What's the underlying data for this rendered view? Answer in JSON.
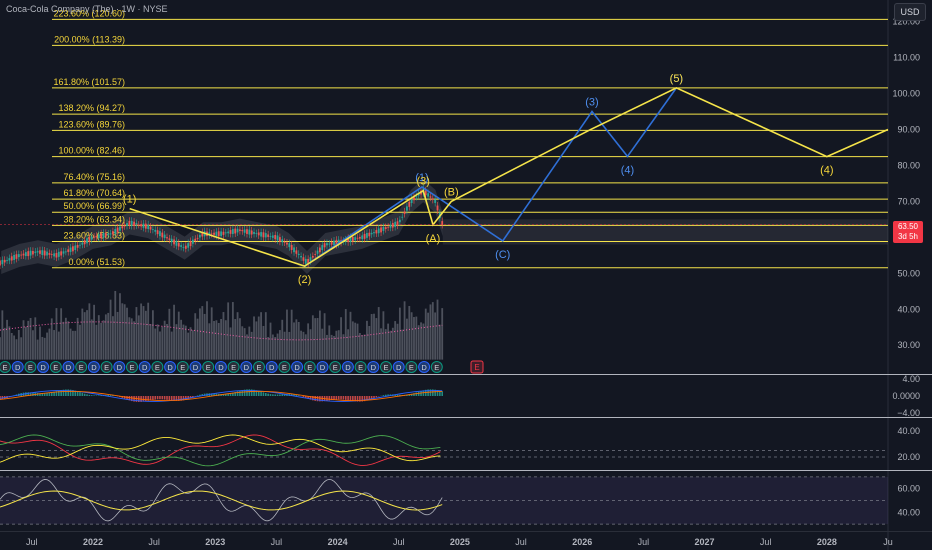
{
  "header": {
    "symbol_title": "Coca-Cola Company (The) · 1W · NYSE",
    "currency_button": "USD"
  },
  "last_price": {
    "value": "63.50",
    "countdown": "3d 5h"
  },
  "colors": {
    "background": "#131722",
    "fib_line": "#f5e44a",
    "fib_label": "#f5d63a",
    "wave_yellow": "#f5e44a",
    "wave_blue": "#2f6fd6",
    "wave_blue_label": "#4f8ff0",
    "price_up": "#26a69a",
    "price_down": "#ef5350",
    "badge": "#f23645"
  },
  "chart_data": [
    {
      "type": "line",
      "title": "",
      "xlabel": "",
      "ylabel": "",
      "ylim": [
        22,
        126
      ],
      "y_ticks": [
        {
          "v": 120,
          "label": "120.00"
        },
        {
          "v": 110,
          "label": "110.00"
        },
        {
          "v": 100,
          "label": "100.00"
        },
        {
          "v": 90,
          "label": "90.00"
        },
        {
          "v": 80,
          "label": "80.00"
        },
        {
          "v": 70,
          "label": "70.00"
        },
        {
          "v": 50,
          "label": "50.00"
        },
        {
          "v": 40,
          "label": "40.00"
        },
        {
          "v": 30,
          "label": "30.00"
        }
      ],
      "x_ticks": [
        "Jul",
        "2022",
        "Jul",
        "2023",
        "Jul",
        "2024",
        "Jul",
        "2025",
        "Jul",
        "2026",
        "Jul",
        "2027",
        "Jul",
        "2028",
        "Ju"
      ],
      "x_tick_t": [
        2021.5,
        2022.0,
        2022.5,
        2023.0,
        2023.5,
        2024.0,
        2024.5,
        2025.0,
        2025.5,
        2026.0,
        2026.5,
        2027.0,
        2027.5,
        2028.0,
        2028.5
      ],
      "xlim": [
        2021.24,
        2028.5
      ],
      "fib_levels": [
        {
          "label": "223.60% (120.60)",
          "value": 120.6
        },
        {
          "label": "200.00% (113.39)",
          "value": 113.39
        },
        {
          "label": "161.80% (101.57)",
          "value": 101.57
        },
        {
          "label": "138.20% (94.27)",
          "value": 94.27
        },
        {
          "label": "123.60% (89.76)",
          "value": 89.76
        },
        {
          "label": "100.00% (82.46)",
          "value": 82.46
        },
        {
          "label": "76.40% (75.16)",
          "value": 75.16
        },
        {
          "label": "61.80% (70.64)",
          "value": 70.64
        },
        {
          "label": "50.00% (66.99)",
          "value": 66.99
        },
        {
          "label": "38.20% (63.34)",
          "value": 63.34
        },
        {
          "label": "23.60% (58.83)",
          "value": 58.83
        },
        {
          "label": "0.00% (51.53)",
          "value": 51.53
        }
      ],
      "price_series": {
        "name": "KO",
        "x": [
          2021.25,
          2021.4,
          2021.55,
          2021.7,
          2021.85,
          2022.0,
          2022.15,
          2022.3,
          2022.45,
          2022.6,
          2022.75,
          2022.9,
          2023.05,
          2023.2,
          2023.35,
          2023.5,
          2023.6,
          2023.75,
          2023.9,
          2024.05,
          2024.2,
          2024.35,
          2024.5,
          2024.6,
          2024.7,
          2024.8,
          2024.86
        ],
        "y": [
          53,
          55,
          56,
          55,
          57,
          60,
          61,
          64,
          63,
          60,
          57,
          61,
          61,
          62,
          61,
          60,
          58,
          53,
          58,
          59,
          60,
          62,
          64,
          70,
          73,
          70,
          63.5
        ]
      },
      "volume_series": {
        "x": [
          2021.25,
          2021.5,
          2021.75,
          2022.0,
          2022.25,
          2022.5,
          2022.75,
          2023.0,
          2023.25,
          2023.5,
          2023.75,
          2024.0,
          2024.25,
          2024.5,
          2024.75,
          2024.86
        ],
        "y": [
          32,
          31,
          33,
          35,
          38,
          34,
          33,
          36,
          33,
          32,
          33,
          32,
          33,
          34,
          36,
          35
        ]
      },
      "waves_yellow": [
        {
          "label": "(1)",
          "x": 2022.3,
          "y": 68
        },
        {
          "label": "(2)",
          "x": 2023.73,
          "y": 52
        },
        {
          "label": "(3)",
          "x": 2024.7,
          "y": 73
        },
        {
          "label": "(A)",
          "x": 2024.78,
          "y": 63.5
        },
        {
          "label": "(B)",
          "x": 2024.93,
          "y": 70
        },
        {
          "label": "",
          "x": 2026.07,
          "y": 90
        },
        {
          "label": "(5)",
          "x": 2026.77,
          "y": 101.57
        },
        {
          "label": "(4)",
          "x": 2028.0,
          "y": 82.46
        },
        {
          "label": "",
          "x": 2028.5,
          "y": 90
        }
      ],
      "waves_blue": [
        {
          "label": "",
          "x": 2023.73,
          "y": 52
        },
        {
          "label": "(1)",
          "x": 2024.69,
          "y": 74
        },
        {
          "label": "(C)",
          "x": 2025.35,
          "y": 59
        },
        {
          "label": "(3)",
          "x": 2026.08,
          "y": 95
        },
        {
          "label": "(4)",
          "x": 2026.37,
          "y": 82.5
        },
        {
          "label": "(5)",
          "x": 2026.77,
          "y": 101.57
        }
      ],
      "earnings_markers": [
        "E",
        "D",
        "E",
        "D",
        "E",
        "D",
        "E",
        "D",
        "E",
        "D",
        "E",
        "D",
        "E",
        "D",
        "E",
        "D",
        "E",
        "D",
        "E",
        "D",
        "E",
        "D",
        "E",
        "D",
        "E",
        "D",
        "E",
        "D",
        "E",
        "D",
        "E",
        "D",
        "E",
        "D",
        "E"
      ],
      "earnings_future": "E"
    },
    {
      "type": "line",
      "title": "",
      "ylim": [
        -5,
        5
      ],
      "y_ticks": [
        {
          "v": 4,
          "label": "4.00"
        },
        {
          "v": 0,
          "label": "0.0000"
        },
        {
          "v": -4,
          "label": "−4.00"
        }
      ]
    },
    {
      "type": "line",
      "title": "",
      "ylim": [
        10,
        50
      ],
      "y_ticks": [
        {
          "v": 40,
          "label": "40.00"
        },
        {
          "v": 20,
          "label": "20.00"
        }
      ]
    },
    {
      "type": "line",
      "title": "",
      "ylim": [
        25,
        75
      ],
      "y_ticks": [
        {
          "v": 60,
          "label": "60.00"
        },
        {
          "v": 40,
          "label": "40.00"
        }
      ]
    }
  ]
}
